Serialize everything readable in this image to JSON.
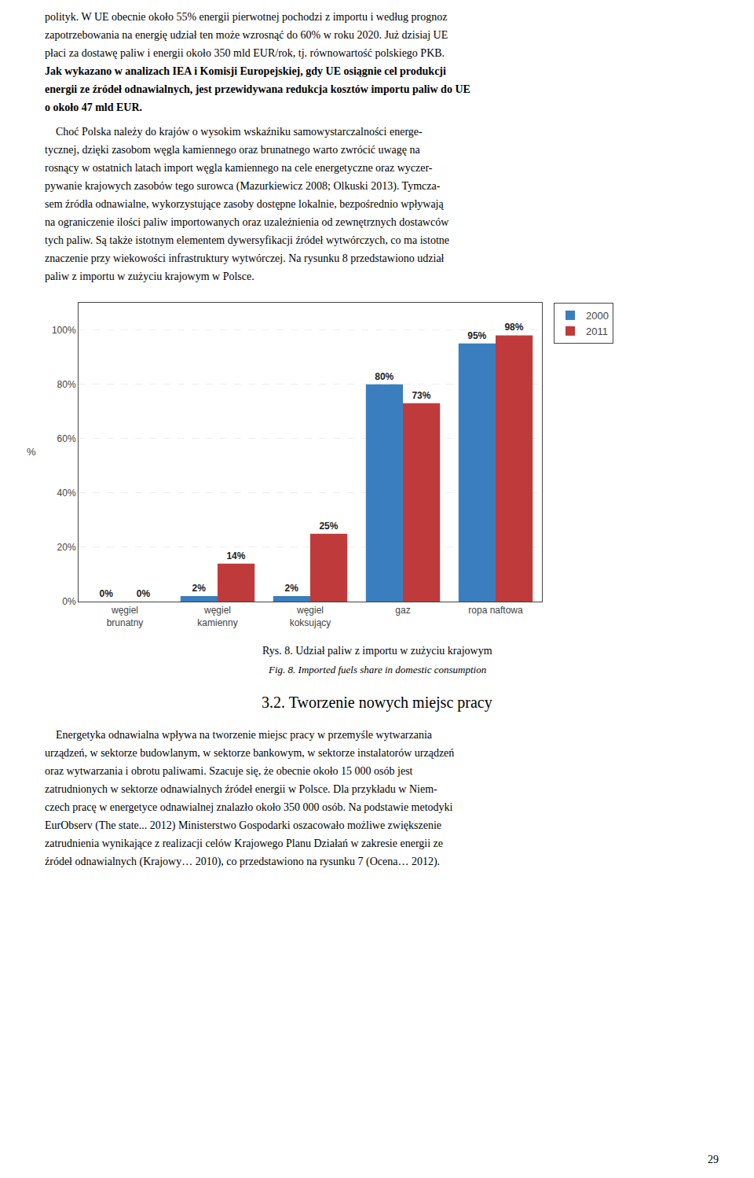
{
  "chart_data": {
    "type": "bar",
    "categories": [
      "węgiel\nbrunatny",
      "węgiel\nkamienny",
      "węgiel\nkoksujący",
      "gaz",
      "ropa naftowa"
    ],
    "series": [
      {
        "name": "2000",
        "color": "#3a7ebf",
        "values": [
          0,
          2,
          2,
          80,
          95
        ],
        "value_labels": [
          "0%",
          "2%",
          "2%",
          "80%",
          "95%"
        ]
      },
      {
        "name": "2011",
        "color": "#bf3a3a",
        "values": [
          0,
          14,
          25,
          73,
          98
        ],
        "value_labels": [
          "0%",
          "14%",
          "25%",
          "73%",
          "98%"
        ]
      }
    ],
    "y_label": "%",
    "ylim": [
      0,
      110
    ],
    "yticks": [
      {
        "value": 0,
        "label": "0%"
      },
      {
        "value": 20,
        "label": "20%"
      },
      {
        "value": 40,
        "label": "40%"
      },
      {
        "value": 60,
        "label": "60%"
      },
      {
        "value": 80,
        "label": "80%"
      },
      {
        "value": 100,
        "label": "100%"
      }
    ],
    "grid": true,
    "legend": "upper right",
    "data_labels": true,
    "annotations": [
      "polityk. W UE obecnie około 55% energii pierwotnej pochodzi z importu i według prognoz",
      "zapotrzebowania na energię udział ten może wzrosnąć do 60% w roku 2020. Już dzisiaj UE",
      "płaci za dostawę paliw i energii około 350 mld EUR/rok, tj. równowartość polskiego PKB.",
      "Jak wykazano w analizach IEA i Komisji Europejskiej, gdy UE osiągnie cel produkcji",
      "energii ze źródeł odnawialnych, jest przewidywana redukcja kosztów importu paliw do UE",
      "o około 47 mld EUR.",
      "    Choć Polska należy do krajów o wysokim wskaźniku samowystarczalności energe-",
      "tycznej, dzięki zasobom węgla kamiennego oraz brunatnego warto zwrócić uwagę na",
      "rosnący w ostatnich latach import węgla kamiennego na cele energetyczne oraz wyczer-",
      "pywanie krajowych zasobów tego surowca (Mazurkiewicz 2008; Olkuski 2013). Tymcza-",
      "sem źródła odnawialne, wykorzystujące zasoby dostępne lokalnie, bezpośrednio wpływają",
      "na ograniczenie ilości paliw importowanych oraz uzależnienia od zewnętrznych dostawców",
      "tych paliw. Są także istotnym elementem dywersyfikacji źródeł wytwórczych, co ma istotne",
      "znaczenie przy wiekowości infrastruktury wytwórczej. Na rysunku 8 przedstawiono udział",
      "paliw z importu w zużyciu krajowym w Polsce.",
      "Rys. 8. Udział paliw z importu w zużyciu krajowym",
      "Fig. 8. Imported fuels share in domestic consumption",
      "3.2. Tworzenie nowych miejsc pracy",
      "    Energetyka odnawialna wpływa na tworzenie miejsc pracy w przemyśle wytwarzania",
      "urządzeń, w sektorze budowlanym, w sektorze bankowym, w sektorze instalatorów urządzeń",
      "oraz wytwarzania i obrotu paliwami. Szacuje się, że obecnie około 15 000 osób jest",
      "zatrudnionych w sektorze odnawialnych źródeł energii w Polsce. Dla przykładu w Niem-",
      "czech pracę w energetyce odnawialnej znalazło około 350 000 osób. Na podstawie metodyki",
      "EurObserv (The state... 2012) Ministerstwo Gospodarki oszacowało możliwe zwiększenie",
      "zatrudnienia wynikające z realizacji celów Krajowego Planu Działań w zakresie energii ze",
      "źródeł odnawialnych (Krajowy… 2010), co przedstawiono na rysunku 7 (Ocena… 2012).",
      "29"
    ]
  }
}
